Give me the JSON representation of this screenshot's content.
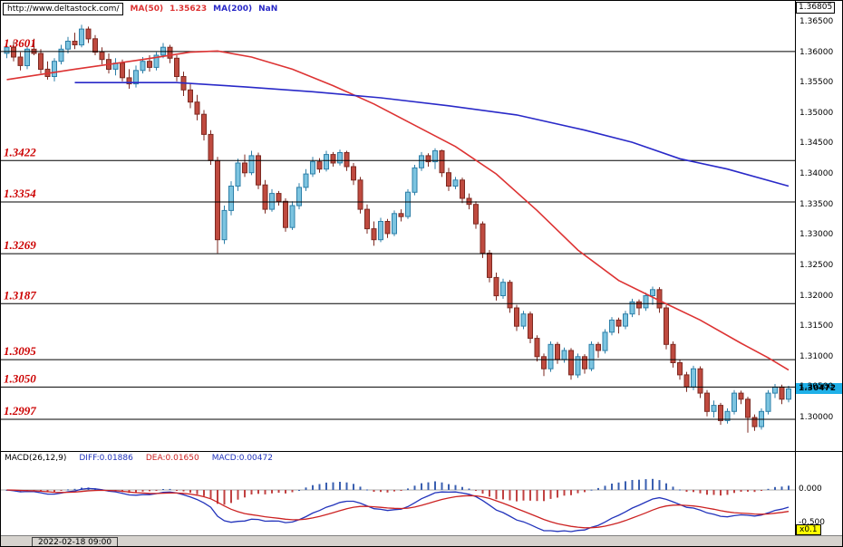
{
  "header": {
    "url": "http://www.deltastock.com/",
    "ma50_label": "MA(50)",
    "ma50_value": "1.35623",
    "ma200_label": "MA(200)",
    "ma200_value": "NaN"
  },
  "colors": {
    "up_fill": "#7cc4e0",
    "up_stroke": "#2d7fa8",
    "down_fill": "#bf4a3f",
    "down_stroke": "#7d2a22",
    "ma50": "#dd3333",
    "ma200": "#2929c8",
    "level_line": "#000000",
    "level_label": "#cc0000",
    "current_badge_bg": "#1fb0e8",
    "macd_diff": "#2233bb",
    "macd_dea": "#cc2222",
    "macd_hist_pos": "#3a5fb0",
    "macd_hist_neg": "#c04040",
    "multiplier_badge_bg": "#ffff00"
  },
  "levels": [
    "1.3601",
    "1.3422",
    "1.3354",
    "1.3269",
    "1.3187",
    "1.3095",
    "1.3050",
    "1.2997"
  ],
  "y_axis": {
    "top_label": "1.36805",
    "ticks": [
      "1.36500",
      "1.36000",
      "1.35500",
      "1.35000",
      "1.34500",
      "1.34000",
      "1.33500",
      "1.33000",
      "1.32500",
      "1.32000",
      "1.31500",
      "1.31000",
      "1.30500",
      "1.30000"
    ],
    "current_price": "1.30472"
  },
  "macd_panel": {
    "title": "MACD(26,12,9)",
    "diff_label": "DIFF:0.01886",
    "dea_label": "DEA:0.01650",
    "macd_label": "MACD:0.00472",
    "axis_zero": "0.000",
    "axis_neg": "-0.500",
    "multiplier": "x0.1",
    "params": {
      "fast": 12,
      "slow": 26,
      "signal": 9
    }
  },
  "status_bar": {
    "timestamp": "2022-02-18 09:00"
  },
  "chart_data": {
    "type": "candlestick",
    "price_axis_range": [
      1.2945,
      1.368
    ],
    "last_price": 1.30472,
    "support_resistance_levels": [
      1.3601,
      1.3422,
      1.3354,
      1.3269,
      1.3187,
      1.3095,
      1.305,
      1.2997
    ],
    "candles": [
      [
        1.3598,
        1.3615,
        1.359,
        1.3608
      ],
      [
        1.3608,
        1.3618,
        1.3585,
        1.3592
      ],
      [
        1.3592,
        1.36,
        1.357,
        1.3578
      ],
      [
        1.3578,
        1.361,
        1.3572,
        1.3605
      ],
      [
        1.3605,
        1.3622,
        1.3595,
        1.3598
      ],
      [
        1.3598,
        1.3605,
        1.3565,
        1.3572
      ],
      [
        1.3572,
        1.3585,
        1.3555,
        1.356
      ],
      [
        1.356,
        1.359,
        1.3552,
        1.3585
      ],
      [
        1.3585,
        1.3612,
        1.358,
        1.3605
      ],
      [
        1.3605,
        1.3625,
        1.3598,
        1.3618
      ],
      [
        1.3618,
        1.3632,
        1.3605,
        1.3612
      ],
      [
        1.3612,
        1.3645,
        1.3608,
        1.3638
      ],
      [
        1.3638,
        1.3642,
        1.3615,
        1.3622
      ],
      [
        1.3622,
        1.3628,
        1.3595,
        1.36
      ],
      [
        1.36,
        1.3608,
        1.358,
        1.3588
      ],
      [
        1.3588,
        1.3598,
        1.3565,
        1.3572
      ],
      [
        1.3572,
        1.359,
        1.3562,
        1.3582
      ],
      [
        1.3582,
        1.3588,
        1.3552,
        1.3558
      ],
      [
        1.3558,
        1.3572,
        1.354,
        1.3548
      ],
      [
        1.3548,
        1.3578,
        1.3542,
        1.357
      ],
      [
        1.357,
        1.3592,
        1.3565,
        1.3585
      ],
      [
        1.3585,
        1.3595,
        1.3568,
        1.3575
      ],
      [
        1.3575,
        1.36,
        1.357,
        1.3595
      ],
      [
        1.3595,
        1.3615,
        1.359,
        1.3608
      ],
      [
        1.3608,
        1.3612,
        1.3582,
        1.359
      ],
      [
        1.359,
        1.3595,
        1.3552,
        1.356
      ],
      [
        1.356,
        1.3568,
        1.3528,
        1.3538
      ],
      [
        1.3538,
        1.3548,
        1.3508,
        1.3518
      ],
      [
        1.3518,
        1.353,
        1.3488,
        1.3498
      ],
      [
        1.3498,
        1.3505,
        1.3455,
        1.3465
      ],
      [
        1.3465,
        1.3472,
        1.3415,
        1.3422
      ],
      [
        1.3422,
        1.3428,
        1.327,
        1.3292
      ],
      [
        1.3292,
        1.3348,
        1.3285,
        1.334
      ],
      [
        1.334,
        1.3388,
        1.3332,
        1.338
      ],
      [
        1.338,
        1.3425,
        1.3372,
        1.3418
      ],
      [
        1.3418,
        1.3432,
        1.3395,
        1.3402
      ],
      [
        1.3402,
        1.3438,
        1.3398,
        1.343
      ],
      [
        1.343,
        1.3435,
        1.3375,
        1.3382
      ],
      [
        1.3382,
        1.339,
        1.3335,
        1.3342
      ],
      [
        1.3342,
        1.3375,
        1.3338,
        1.3368
      ],
      [
        1.3368,
        1.3372,
        1.3348,
        1.3355
      ],
      [
        1.3355,
        1.336,
        1.3305,
        1.3312
      ],
      [
        1.3312,
        1.3355,
        1.3308,
        1.3348
      ],
      [
        1.3348,
        1.3385,
        1.3342,
        1.3378
      ],
      [
        1.3378,
        1.3408,
        1.3372,
        1.34
      ],
      [
        1.34,
        1.3428,
        1.3395,
        1.342
      ],
      [
        1.342,
        1.3426,
        1.3402,
        1.3408
      ],
      [
        1.3408,
        1.3438,
        1.3404,
        1.3432
      ],
      [
        1.3432,
        1.3436,
        1.3412,
        1.3418
      ],
      [
        1.3418,
        1.344,
        1.3414,
        1.3435
      ],
      [
        1.3435,
        1.3438,
        1.3405,
        1.3412
      ],
      [
        1.3412,
        1.3418,
        1.3382,
        1.339
      ],
      [
        1.339,
        1.3395,
        1.3335,
        1.3342
      ],
      [
        1.3342,
        1.335,
        1.3302,
        1.331
      ],
      [
        1.331,
        1.3322,
        1.3282,
        1.3292
      ],
      [
        1.3292,
        1.3328,
        1.3288,
        1.3322
      ],
      [
        1.3322,
        1.3326,
        1.3295,
        1.3302
      ],
      [
        1.3302,
        1.334,
        1.3298,
        1.3335
      ],
      [
        1.3335,
        1.3342,
        1.3322,
        1.333
      ],
      [
        1.333,
        1.3375,
        1.3326,
        1.337
      ],
      [
        1.337,
        1.3415,
        1.3365,
        1.341
      ],
      [
        1.341,
        1.3436,
        1.3405,
        1.343
      ],
      [
        1.343,
        1.3434,
        1.3412,
        1.342
      ],
      [
        1.342,
        1.3442,
        1.3408,
        1.3438
      ],
      [
        1.3438,
        1.344,
        1.3395,
        1.3402
      ],
      [
        1.3402,
        1.341,
        1.3372,
        1.338
      ],
      [
        1.338,
        1.3395,
        1.3375,
        1.339
      ],
      [
        1.339,
        1.3394,
        1.3352,
        1.336
      ],
      [
        1.336,
        1.3368,
        1.3342,
        1.335
      ],
      [
        1.335,
        1.3355,
        1.331,
        1.3318
      ],
      [
        1.3318,
        1.3322,
        1.3262,
        1.327
      ],
      [
        1.327,
        1.3275,
        1.3222,
        1.323
      ],
      [
        1.323,
        1.3238,
        1.3192,
        1.32
      ],
      [
        1.32,
        1.3228,
        1.3195,
        1.3222
      ],
      [
        1.3222,
        1.3226,
        1.3172,
        1.318
      ],
      [
        1.318,
        1.3185,
        1.3142,
        1.315
      ],
      [
        1.315,
        1.3175,
        1.3145,
        1.317
      ],
      [
        1.317,
        1.3174,
        1.3122,
        1.313
      ],
      [
        1.313,
        1.3135,
        1.3092,
        1.31
      ],
      [
        1.31,
        1.3105,
        1.3068,
        1.308
      ],
      [
        1.308,
        1.3125,
        1.3075,
        1.312
      ],
      [
        1.312,
        1.3124,
        1.3088,
        1.3095
      ],
      [
        1.3095,
        1.3115,
        1.309,
        1.311
      ],
      [
        1.311,
        1.3114,
        1.3062,
        1.307
      ],
      [
        1.307,
        1.3105,
        1.3065,
        1.31
      ],
      [
        1.31,
        1.3104,
        1.3072,
        1.308
      ],
      [
        1.308,
        1.3125,
        1.3076,
        1.312
      ],
      [
        1.312,
        1.3124,
        1.3098,
        1.311
      ],
      [
        1.311,
        1.3145,
        1.3105,
        1.314
      ],
      [
        1.314,
        1.3165,
        1.3135,
        1.316
      ],
      [
        1.316,
        1.3164,
        1.3138,
        1.315
      ],
      [
        1.315,
        1.3175,
        1.3145,
        1.317
      ],
      [
        1.317,
        1.3195,
        1.3165,
        1.319
      ],
      [
        1.319,
        1.3194,
        1.3168,
        1.318
      ],
      [
        1.318,
        1.3205,
        1.3175,
        1.32
      ],
      [
        1.32,
        1.3215,
        1.3185,
        1.321
      ],
      [
        1.321,
        1.3214,
        1.3172,
        1.318
      ],
      [
        1.318,
        1.3185,
        1.3112,
        1.312
      ],
      [
        1.312,
        1.3125,
        1.3082,
        1.309
      ],
      [
        1.309,
        1.3095,
        1.3062,
        1.307
      ],
      [
        1.307,
        1.3075,
        1.3042,
        1.305
      ],
      [
        1.305,
        1.3085,
        1.3045,
        1.308
      ],
      [
        1.308,
        1.3084,
        1.3032,
        1.304
      ],
      [
        1.304,
        1.3045,
        1.3002,
        1.301
      ],
      [
        1.301,
        1.3028,
        1.3,
        1.302
      ],
      [
        1.302,
        1.3024,
        1.2988,
        1.2995
      ],
      [
        1.2995,
        1.3015,
        1.299,
        1.301
      ],
      [
        1.301,
        1.3045,
        1.3005,
        1.304
      ],
      [
        1.304,
        1.3044,
        1.3022,
        1.303
      ],
      [
        1.303,
        1.3034,
        1.2975,
        1.3
      ],
      [
        1.3,
        1.3005,
        1.2978,
        1.2985
      ],
      [
        1.2985,
        1.3015,
        1.298,
        1.301
      ],
      [
        1.301,
        1.3045,
        1.3005,
        1.304
      ],
      [
        1.304,
        1.3055,
        1.3032,
        1.305
      ],
      [
        1.305,
        1.3054,
        1.3022,
        1.303
      ],
      [
        1.303,
        1.3052,
        1.3025,
        1.3047
      ]
    ],
    "ma50_points": [
      [
        0,
        1.3555
      ],
      [
        10,
        1.3572
      ],
      [
        20,
        1.3588
      ],
      [
        27,
        1.36
      ],
      [
        31,
        1.3602
      ],
      [
        36,
        1.3592
      ],
      [
        42,
        1.3572
      ],
      [
        48,
        1.3545
      ],
      [
        54,
        1.3515
      ],
      [
        60,
        1.348
      ],
      [
        66,
        1.3445
      ],
      [
        72,
        1.34
      ],
      [
        78,
        1.334
      ],
      [
        84,
        1.3275
      ],
      [
        90,
        1.3225
      ],
      [
        96,
        1.3192
      ],
      [
        102,
        1.316
      ],
      [
        108,
        1.3122
      ],
      [
        112,
        1.3098
      ],
      [
        115,
        1.3078
      ]
    ],
    "ma200_points": [
      [
        10,
        1.355
      ],
      [
        25,
        1.355
      ],
      [
        35,
        1.3543
      ],
      [
        45,
        1.3535
      ],
      [
        55,
        1.3525
      ],
      [
        65,
        1.3512
      ],
      [
        75,
        1.3497
      ],
      [
        85,
        1.3472
      ],
      [
        92,
        1.3452
      ],
      [
        99,
        1.3425
      ],
      [
        106,
        1.3408
      ],
      [
        115,
        1.338
      ]
    ]
  }
}
